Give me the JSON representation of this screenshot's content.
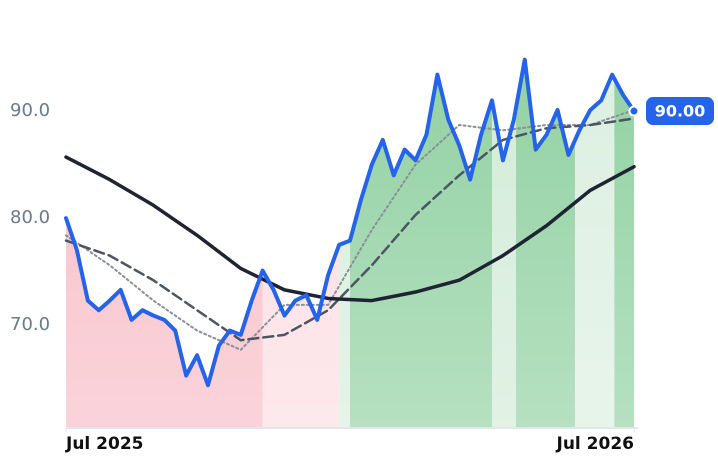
{
  "chart_data": {
    "type": "line",
    "x": [
      0,
      1,
      2,
      3,
      4,
      5,
      6,
      7,
      8,
      9,
      10,
      11,
      12,
      13,
      14,
      15,
      16,
      17,
      18,
      19,
      20,
      21,
      22,
      23,
      24,
      25,
      26,
      27,
      28,
      29,
      30,
      31,
      32,
      33,
      34,
      35,
      36,
      37,
      38,
      39,
      40,
      41,
      42,
      43,
      44,
      45,
      46,
      47,
      48,
      49,
      50,
      51,
      52
    ],
    "xlim": [
      0,
      52
    ],
    "xticks": [
      {
        "value": 0,
        "label": "Jul 2025"
      },
      {
        "value": 52,
        "label": "Jul 2026"
      }
    ],
    "ylim": [
      60.4,
      98
    ],
    "yticks": [
      {
        "value": 70,
        "label": "70.0"
      },
      {
        "value": 80,
        "label": "80.0"
      },
      {
        "value": 90,
        "label": "90.0"
      }
    ],
    "series": [
      {
        "color": "#2563eb",
        "style": "solid",
        "width": 4,
        "values": [
          80.0,
          77.0,
          72.3,
          71.4,
          72.3,
          73.3,
          70.5,
          71.4,
          70.9,
          70.5,
          69.5,
          65.3,
          67.2,
          64.4,
          68.1,
          69.5,
          69.1,
          72.3,
          75.1,
          73.3,
          70.9,
          72.3,
          72.8,
          70.5,
          74.7,
          77.5,
          77.9,
          81.7,
          85.0,
          87.3,
          84.0,
          86.4,
          85.4,
          87.8,
          93.4,
          89.2,
          86.8,
          83.6,
          87.8,
          91.0,
          85.4,
          89.2,
          94.8,
          86.4,
          87.8,
          90.1,
          85.9,
          88.2,
          90.1,
          91.0,
          93.4,
          91.5,
          90.0
        ],
        "value_labels": [
          null,
          null,
          null,
          null,
          null,
          null,
          null,
          null,
          null,
          null,
          null,
          null,
          null,
          null,
          null,
          null,
          null,
          null,
          null,
          null,
          null,
          null,
          null,
          null,
          null,
          null,
          null,
          null,
          null,
          null,
          null,
          null,
          null,
          null,
          null,
          null,
          null,
          null,
          null,
          null,
          null,
          null,
          null,
          null,
          null,
          null,
          null,
          null,
          null,
          null,
          null,
          null,
          "90.00"
        ]
      },
      {
        "color": "#1e2433",
        "style": "solid",
        "width": 3.5,
        "x": [
          0,
          4,
          8,
          12,
          16,
          20,
          24,
          28,
          32,
          36,
          40,
          44,
          48,
          52
        ],
        "values": [
          85.7,
          83.6,
          81.2,
          78.4,
          75.3,
          73.3,
          72.5,
          72.3,
          73.1,
          74.2,
          76.5,
          79.3,
          82.6,
          84.8
        ]
      },
      {
        "color": "#4b5563",
        "style": "dashed",
        "width": 2.5,
        "x": [
          0,
          4,
          8,
          12,
          16,
          20,
          24,
          28,
          32,
          36,
          40,
          44,
          48,
          52
        ],
        "values": [
          77.9,
          76.5,
          74.2,
          71.4,
          68.6,
          69.1,
          71.4,
          75.6,
          80.3,
          84.0,
          87.3,
          88.4,
          88.7,
          89.3
        ]
      },
      {
        "color": "#8a8f98",
        "style": "dotted",
        "width": 2,
        "x": [
          0,
          4,
          8,
          12,
          16,
          20,
          24,
          28,
          32,
          36,
          40,
          44,
          48,
          52
        ],
        "values": [
          78.4,
          75.6,
          72.3,
          69.5,
          67.7,
          71.9,
          71.9,
          78.9,
          85.0,
          88.7,
          88.2,
          88.7,
          88.7,
          90.1
        ]
      }
    ],
    "bands": [
      {
        "from": 0,
        "to": 18,
        "color": "#f8bcc6"
      },
      {
        "from": 18,
        "to": 25,
        "color": "#fcdce2"
      },
      {
        "from": 25,
        "to": 26,
        "color": "#d6eedc"
      },
      {
        "from": 26,
        "to": 39,
        "color": "#8fd0a0"
      },
      {
        "from": 39,
        "to": 41.2,
        "color": "#d2ebd8"
      },
      {
        "from": 41.2,
        "to": 46.6,
        "color": "#8fd0a0"
      },
      {
        "from": 46.6,
        "to": 50.2,
        "color": "#dbefe0"
      },
      {
        "from": 50.2,
        "to": 52,
        "color": "#8fd0a0"
      }
    ]
  }
}
